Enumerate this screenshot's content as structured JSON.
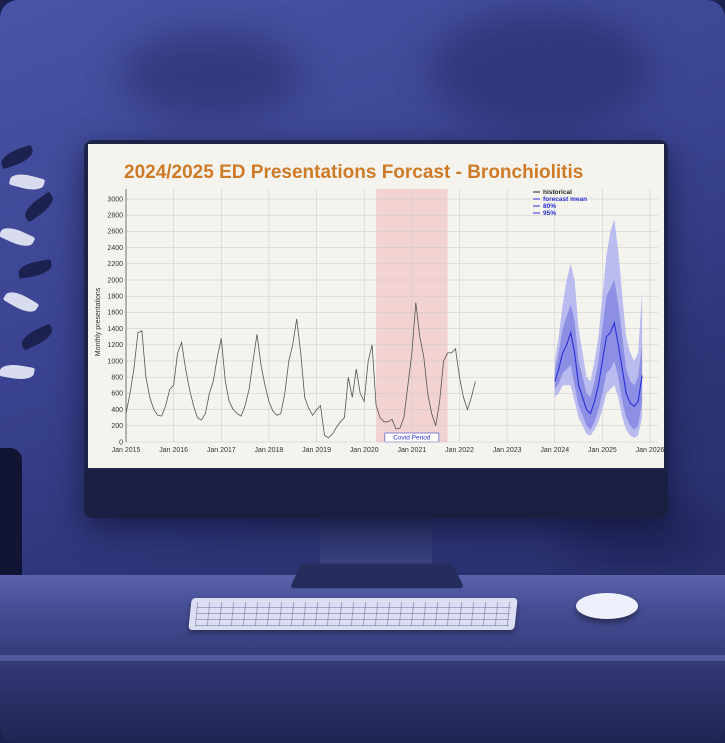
{
  "chart_data": {
    "type": "line",
    "title": "2024/2025 ED Presentations Forcast - Bronchiolitis",
    "ylabel": "Monthly presentations",
    "xlabel": "",
    "ylim": [
      0,
      3000
    ],
    "yticks": [
      0,
      200,
      400,
      600,
      800,
      1000,
      1200,
      1400,
      1600,
      1800,
      2000,
      2200,
      2400,
      2600,
      2800,
      3000
    ],
    "xticks": [
      "Jan 2015",
      "Jan 2016",
      "Jan 2017",
      "Jan 2018",
      "Jan 2019",
      "Jan 2020",
      "Jan 2021",
      "Jan 2022",
      "Jan 2023",
      "Jan 2024",
      "Jan 2025",
      "Jan 2026"
    ],
    "grid": true,
    "legend_position": "top-right",
    "legend": [
      "historical",
      "forecast mean",
      "80%",
      "95%"
    ],
    "annotation": {
      "label": "Covid Period",
      "start": "Apr 2020",
      "end": "Oct 2021"
    },
    "series": [
      {
        "name": "historical",
        "color": "#555555",
        "start": "Jan 2015",
        "values": [
          350,
          600,
          900,
          1350,
          1370,
          800,
          550,
          400,
          330,
          320,
          450,
          650,
          700,
          1100,
          1230,
          900,
          650,
          450,
          300,
          270,
          350,
          600,
          750,
          1050,
          1280,
          750,
          500,
          400,
          350,
          320,
          450,
          650,
          1000,
          1330,
          950,
          700,
          500,
          380,
          330,
          350,
          600,
          1000,
          1200,
          1520,
          1100,
          550,
          420,
          330,
          400,
          450,
          80,
          50,
          100,
          180,
          250,
          300,
          800,
          550,
          900,
          600,
          500,
          1000,
          1200,
          450,
          300,
          250,
          250,
          280,
          160,
          170,
          300,
          700,
          1100,
          1720,
          1300,
          1050,
          600,
          350,
          200,
          500,
          1000,
          1100,
          1100,
          1150,
          800,
          550,
          400,
          550,
          750
        ]
      },
      {
        "name": "forecast mean",
        "color": "#2a2fd6",
        "start": "Jan 2024",
        "values": [
          750,
          900,
          1100,
          1200,
          1350,
          1100,
          700,
          550,
          400,
          350,
          500,
          700,
          1000,
          1300,
          1350,
          1470,
          1200,
          900,
          600,
          480,
          440,
          500,
          820
        ]
      }
    ],
    "intervals": [
      {
        "name": "80%",
        "color": "#7d80e0",
        "lower": [
          650,
          720,
          850,
          900,
          950,
          700,
          450,
          330,
          200,
          150,
          250,
          400,
          600,
          850,
          900,
          1000,
          800,
          500,
          300,
          200,
          150,
          200,
          500
        ],
        "upper": [
          880,
          1100,
          1400,
          1550,
          1700,
          1500,
          1000,
          800,
          600,
          550,
          750,
          1000,
          1400,
          1800,
          1900,
          2000,
          1700,
          1300,
          900,
          750,
          700,
          800,
          1200
        ]
      },
      {
        "name": "95%",
        "color": "#a7aaf0",
        "lower": [
          550,
          600,
          700,
          700,
          700,
          500,
          300,
          200,
          100,
          80,
          150,
          250,
          400,
          600,
          650,
          700,
          550,
          300,
          150,
          80,
          50,
          80,
          300
        ],
        "upper": [
          1000,
          1300,
          1700,
          2000,
          2200,
          2000,
          1400,
          1100,
          800,
          750,
          1000,
          1300,
          1800,
          2300,
          2600,
          2750,
          2350,
          1800,
          1300,
          1100,
          1000,
          1100,
          1850
        ]
      }
    ]
  },
  "colors": {
    "title": "#cf7a26",
    "covid_shade": "#f3c9ca",
    "grid": "#c9c9c9",
    "plot_bg": "#f4f3ee"
  }
}
